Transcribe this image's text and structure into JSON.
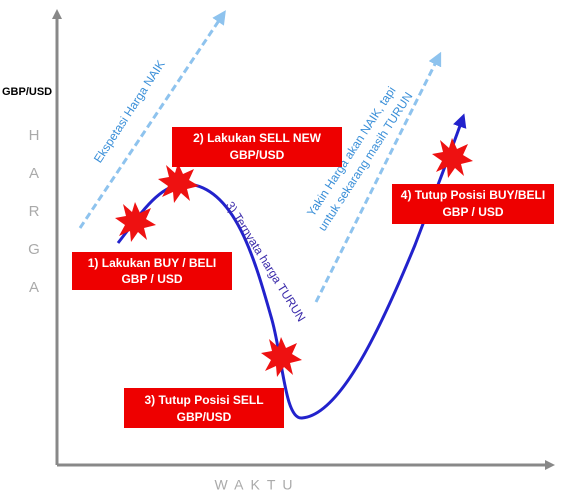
{
  "y_axis": {
    "label": "GBP/USD",
    "letters": [
      "H",
      "A",
      "R",
      "G",
      "A"
    ]
  },
  "x_axis": {
    "label": "WAKTU"
  },
  "annotations": {
    "expectation_up": "Ekspetasi Harga NAIK",
    "price_down": "3) Ternyata harga TURUN",
    "sure_up": [
      "Yakin Harga akan NAIK, tapi",
      "untuk sekarang masih TURUN"
    ]
  },
  "boxes": [
    {
      "lines": [
        "1) Lakukan BUY / BELI",
        "GBP / USD"
      ]
    },
    {
      "lines": [
        "2) Lakukan SELL NEW",
        "GBP/USD"
      ]
    },
    {
      "lines": [
        "3) Tutup Posisi SELL",
        "GBP/USD"
      ]
    },
    {
      "lines": [
        "4) Tutup Posisi BUY/BELI",
        "GBP / USD"
      ]
    }
  ]
}
